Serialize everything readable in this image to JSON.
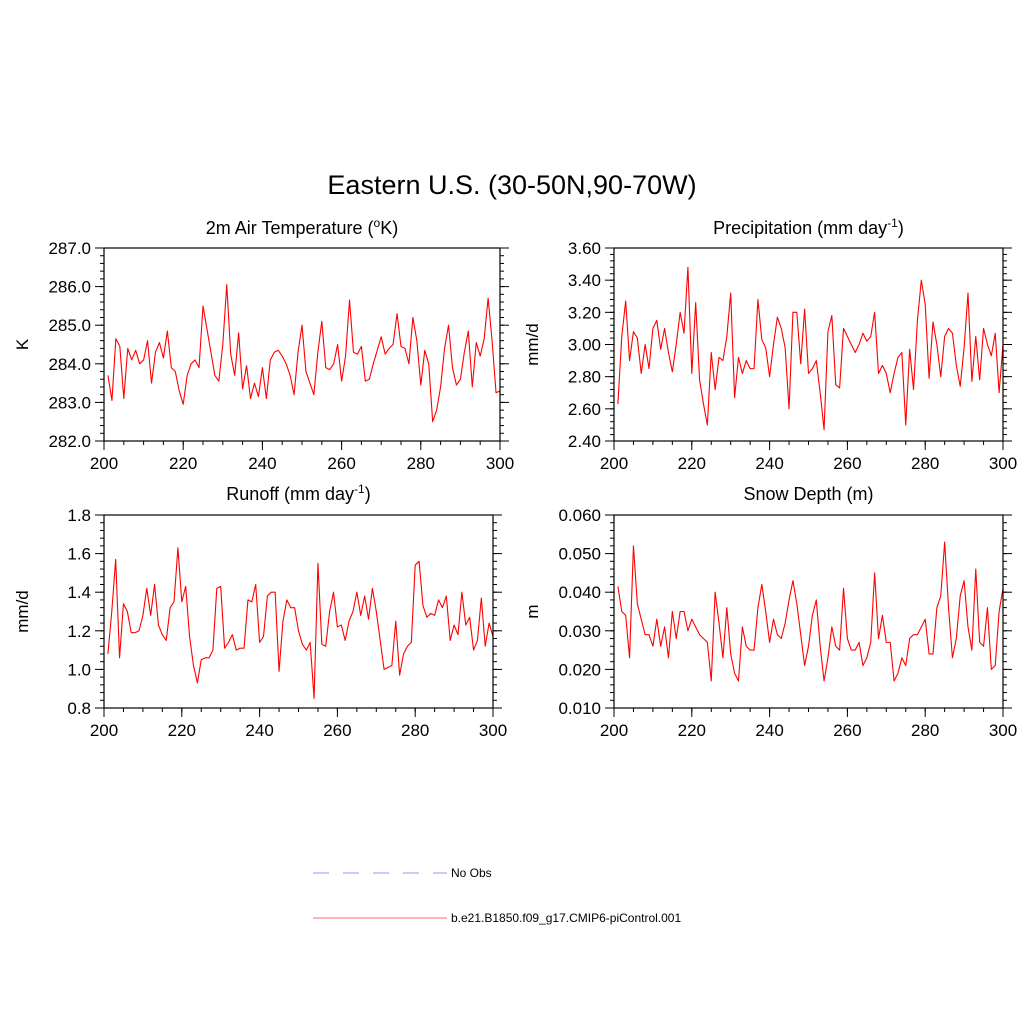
{
  "figure": {
    "title": "Eastern U.S. (30-50N,90-70W)"
  },
  "legend": {
    "entries": [
      {
        "label": "No Obs",
        "color": "#aaaaff",
        "dashed": true
      },
      {
        "label": "b.e21.B1850.f09_g17.CMIP6-piControl.001",
        "color": "#ff8888",
        "dashed": false
      }
    ]
  },
  "chart_data": [
    {
      "type": "line",
      "title": "2m Air Temperature (",
      "title_sup": "o",
      "title_after": "K)",
      "ylabel": "K",
      "xlim": [
        200,
        300
      ],
      "ylim": [
        282.0,
        287.0
      ],
      "x_ticks": [
        200,
        220,
        240,
        260,
        280,
        300
      ],
      "y_ticks": [
        "282.0",
        "283.0",
        "284.0",
        "285.0",
        "286.0",
        "287.0"
      ],
      "y_tick_values": [
        282,
        283,
        284,
        285,
        286,
        287
      ],
      "y_minor_step": 0.2,
      "x_start": 201,
      "line_color": "#ff0000",
      "series": [
        {
          "name": "b.e21.B1850.f09_g17.CMIP6-piControl.001",
          "values": [
            283.7,
            283.05,
            284.65,
            284.45,
            283.1,
            284.4,
            284.1,
            284.35,
            284.0,
            284.1,
            284.6,
            283.5,
            284.3,
            284.55,
            284.15,
            284.85,
            283.9,
            283.8,
            283.3,
            282.95,
            283.7,
            284.0,
            284.1,
            283.9,
            285.5,
            284.9,
            284.3,
            283.7,
            283.55,
            284.5,
            286.05,
            284.25,
            283.7,
            284.8,
            283.35,
            283.95,
            283.1,
            283.5,
            283.15,
            283.9,
            283.1,
            284.1,
            284.3,
            284.35,
            284.2,
            284.0,
            283.7,
            283.2,
            284.3,
            285.0,
            283.8,
            283.5,
            283.2,
            284.3,
            285.1,
            283.9,
            283.85,
            284.0,
            284.5,
            283.55,
            284.2,
            285.65,
            284.3,
            284.25,
            284.45,
            283.55,
            283.6,
            284.0,
            284.35,
            284.7,
            284.25,
            284.4,
            284.5,
            285.3,
            284.45,
            284.4,
            284.0,
            285.2,
            284.6,
            283.45,
            284.35,
            284.0,
            282.5,
            282.8,
            283.4,
            284.4,
            285.0,
            283.9,
            283.45,
            283.6,
            284.3,
            284.85,
            283.4,
            284.55,
            284.2,
            284.65,
            285.7,
            284.6,
            283.25,
            283.3
          ]
        }
      ]
    },
    {
      "type": "line",
      "title": "Precipitation (mm day",
      "title_sup": "-1",
      "title_after": ")",
      "ylabel": "mm/d",
      "xlim": [
        200,
        300
      ],
      "ylim": [
        2.4,
        3.6
      ],
      "x_ticks": [
        200,
        220,
        240,
        260,
        280,
        300
      ],
      "y_ticks": [
        "2.40",
        "2.60",
        "2.80",
        "3.00",
        "3.20",
        "3.40",
        "3.60"
      ],
      "y_tick_values": [
        2.4,
        2.6,
        2.8,
        3.0,
        3.2,
        3.4,
        3.6
      ],
      "y_minor_step": 0.04,
      "x_start": 201,
      "line_color": "#ff0000",
      "series": [
        {
          "name": "b.e21.B1850.f09_g17.CMIP6-piControl.001",
          "values": [
            2.63,
            3.05,
            3.27,
            2.9,
            3.08,
            3.04,
            2.82,
            3.0,
            2.85,
            3.1,
            3.15,
            2.97,
            3.1,
            2.95,
            2.83,
            3.0,
            3.2,
            3.07,
            3.48,
            2.82,
            3.26,
            2.78,
            2.63,
            2.5,
            2.95,
            2.72,
            2.92,
            2.9,
            3.05,
            3.32,
            2.67,
            2.92,
            2.82,
            2.9,
            2.85,
            2.85,
            3.28,
            3.03,
            2.98,
            2.8,
            3.0,
            3.17,
            3.1,
            2.98,
            2.6,
            3.2,
            3.2,
            2.88,
            3.22,
            2.82,
            2.85,
            2.9,
            2.7,
            2.47,
            3.08,
            3.18,
            2.75,
            2.73,
            3.1,
            3.05,
            3.0,
            2.95,
            3.0,
            3.07,
            3.02,
            3.05,
            3.2,
            2.82,
            2.87,
            2.82,
            2.7,
            2.82,
            2.92,
            2.95,
            2.5,
            2.97,
            2.72,
            3.15,
            3.4,
            3.25,
            2.79,
            3.14,
            3.0,
            2.8,
            3.05,
            3.1,
            3.07,
            2.87,
            2.74,
            2.98,
            3.32,
            2.77,
            3.05,
            2.78,
            3.1,
            3.0,
            2.93,
            3.07,
            2.7,
            3.0
          ]
        }
      ]
    },
    {
      "type": "line",
      "title": "Runoff (mm day",
      "title_sup": "-1",
      "title_after": ")",
      "ylabel": "mm/d",
      "xlim": [
        200,
        300
      ],
      "ylim": [
        0.8,
        1.8
      ],
      "x_ticks": [
        200,
        220,
        240,
        260,
        280,
        300
      ],
      "y_ticks": [
        "0.8",
        "1.0",
        "1.2",
        "1.4",
        "1.6",
        "1.8"
      ],
      "y_tick_values": [
        0.8,
        1.0,
        1.2,
        1.4,
        1.6,
        1.8
      ],
      "y_minor_step": 0.04,
      "x_start": 201,
      "line_color": "#ff0000",
      "series": [
        {
          "name": "b.e21.B1850.f09_g17.CMIP6-piControl.001",
          "values": [
            1.08,
            1.3,
            1.57,
            1.06,
            1.34,
            1.3,
            1.19,
            1.19,
            1.2,
            1.28,
            1.42,
            1.28,
            1.44,
            1.23,
            1.18,
            1.15,
            1.32,
            1.35,
            1.63,
            1.35,
            1.43,
            1.17,
            1.02,
            0.93,
            1.05,
            1.06,
            1.06,
            1.1,
            1.42,
            1.43,
            1.11,
            1.14,
            1.18,
            1.1,
            1.11,
            1.11,
            1.36,
            1.35,
            1.44,
            1.14,
            1.17,
            1.38,
            1.4,
            1.4,
            0.99,
            1.25,
            1.36,
            1.32,
            1.32,
            1.2,
            1.13,
            1.1,
            1.14,
            0.85,
            1.55,
            1.13,
            1.12,
            1.3,
            1.4,
            1.22,
            1.23,
            1.15,
            1.25,
            1.3,
            1.4,
            1.28,
            1.38,
            1.26,
            1.42,
            1.3,
            1.15,
            1.0,
            1.01,
            1.02,
            1.25,
            0.97,
            1.08,
            1.12,
            1.14,
            1.54,
            1.56,
            1.33,
            1.27,
            1.29,
            1.28,
            1.36,
            1.32,
            1.38,
            1.15,
            1.23,
            1.18,
            1.4,
            1.23,
            1.27,
            1.1,
            1.15,
            1.37,
            1.12,
            1.24,
            1.17
          ]
        }
      ]
    },
    {
      "type": "line",
      "title": "Snow Depth (m)",
      "title_sup": "",
      "title_after": "",
      "ylabel": "m",
      "xlim": [
        200,
        300
      ],
      "ylim": [
        0.01,
        0.06
      ],
      "x_ticks": [
        200,
        220,
        240,
        260,
        280,
        300
      ],
      "y_ticks": [
        "0.010",
        "0.020",
        "0.030",
        "0.040",
        "0.050",
        "0.060"
      ],
      "y_tick_values": [
        0.01,
        0.02,
        0.03,
        0.04,
        0.05,
        0.06
      ],
      "y_minor_step": 0.002,
      "x_start": 201,
      "line_color": "#ff0000",
      "series": [
        {
          "name": "b.e21.B1850.f09_g17.CMIP6-piControl.001",
          "values": [
            0.0415,
            0.035,
            0.034,
            0.023,
            0.052,
            0.037,
            0.033,
            0.029,
            0.029,
            0.026,
            0.033,
            0.026,
            0.031,
            0.023,
            0.035,
            0.028,
            0.035,
            0.035,
            0.03,
            0.033,
            0.031,
            0.029,
            0.028,
            0.027,
            0.017,
            0.04,
            0.032,
            0.023,
            0.036,
            0.024,
            0.019,
            0.017,
            0.031,
            0.026,
            0.025,
            0.025,
            0.036,
            0.042,
            0.035,
            0.027,
            0.033,
            0.029,
            0.028,
            0.032,
            0.038,
            0.043,
            0.037,
            0.029,
            0.021,
            0.026,
            0.034,
            0.038,
            0.026,
            0.017,
            0.023,
            0.031,
            0.026,
            0.025,
            0.041,
            0.028,
            0.025,
            0.025,
            0.027,
            0.021,
            0.023,
            0.027,
            0.045,
            0.028,
            0.034,
            0.027,
            0.027,
            0.017,
            0.019,
            0.023,
            0.021,
            0.028,
            0.029,
            0.029,
            0.031,
            0.033,
            0.024,
            0.024,
            0.036,
            0.039,
            0.053,
            0.036,
            0.023,
            0.028,
            0.039,
            0.043,
            0.031,
            0.025,
            0.046,
            0.027,
            0.026,
            0.036,
            0.02,
            0.021,
            0.035,
            0.041
          ]
        }
      ]
    }
  ]
}
